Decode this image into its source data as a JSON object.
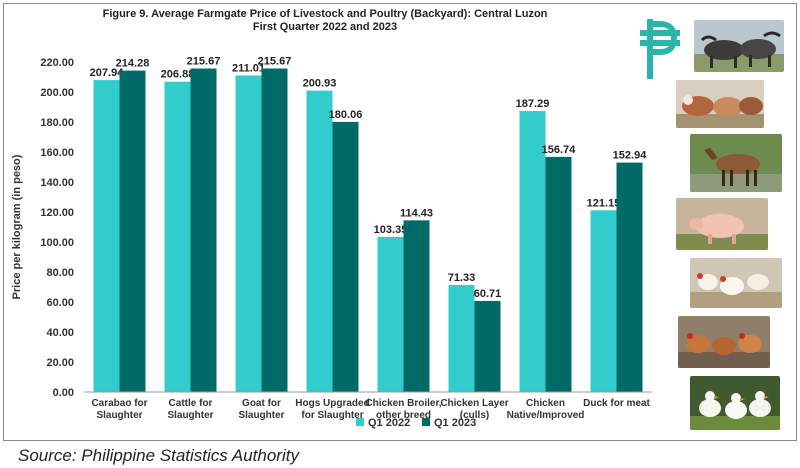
{
  "chart_data": {
    "type": "bar",
    "title_lines": [
      "Figure 9. Average Farmgate Price of Livestock and Poultry (Backyard): Central Luzon",
      "First Quarter 2022 and 2023"
    ],
    "ylabel": "Price per kilogram (in peso)",
    "xlabel": "",
    "ylim": [
      0,
      220
    ],
    "yticks": [
      "0.00",
      "20.00",
      "40.00",
      "60.00",
      "80.00",
      "100.00",
      "120.00",
      "140.00",
      "160.00",
      "180.00",
      "200.00",
      "220.00"
    ],
    "categories": [
      [
        "Carabao for",
        "Slaughter"
      ],
      [
        "Cattle for",
        "Slaughter"
      ],
      [
        "Goat for",
        "Slaughter"
      ],
      [
        "Hogs Upgraded",
        "for Slaughter"
      ],
      [
        "Chicken Broiler,",
        "other breed"
      ],
      [
        "Chicken Layer",
        "(culls)"
      ],
      [
        "Chicken",
        "Native/Improved"
      ],
      [
        "Duck for meat"
      ]
    ],
    "series": [
      {
        "name": "Q1 2022",
        "color": "#33cccc",
        "values": [
          207.94,
          206.88,
          211.01,
          200.93,
          103.35,
          71.33,
          187.29,
          121.15
        ],
        "labels": [
          "207.94",
          "206.88",
          "211.01",
          "200.93",
          "103.35",
          "71.33",
          "187.29",
          "121.15"
        ]
      },
      {
        "name": "Q1 2023",
        "color": "#006b66",
        "values": [
          214.28,
          215.67,
          215.67,
          180.06,
          114.43,
          60.71,
          156.74,
          152.94
        ],
        "labels": [
          "214.28",
          "215.67",
          "215.67",
          "180.06",
          "114.43",
          "60.71",
          "156.74",
          "152.94"
        ]
      }
    ],
    "grid": false,
    "legend_position": "bottom"
  },
  "source_text": "Source: Philippine Statistics Authority",
  "decor": {
    "icon": "peso-sign-icon",
    "icon_color": "#2ab5a8",
    "photos": [
      "carabao-photo",
      "cattle-photo",
      "goat-photo",
      "hog-photo",
      "broiler-chicken-photo",
      "layer-chicken-photo",
      "duck-photo"
    ]
  }
}
